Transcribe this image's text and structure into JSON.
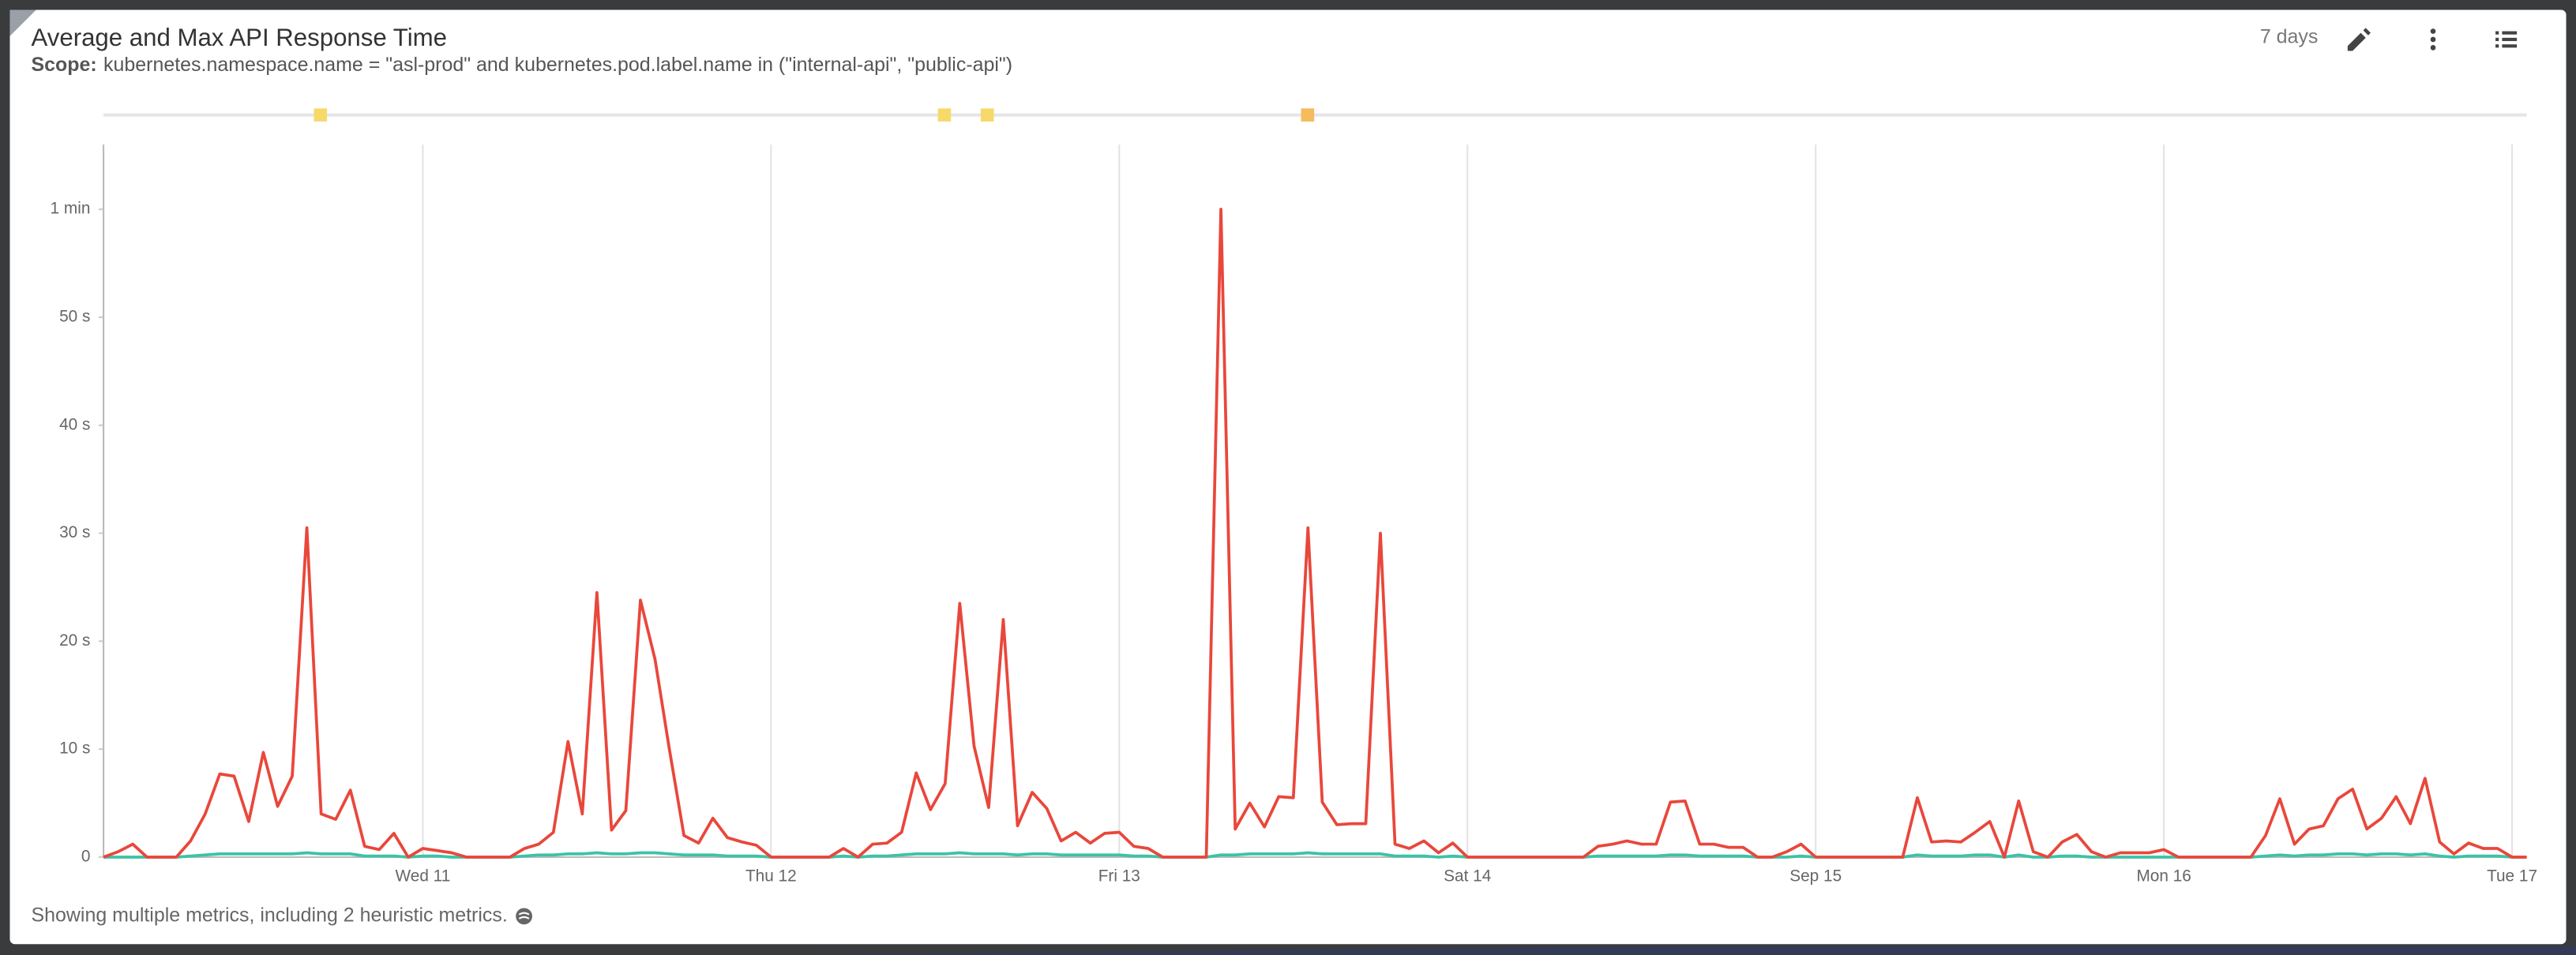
{
  "header": {
    "title": "Average and Max API Response Time",
    "scope_label": "Scope:",
    "scope": "kubernetes.namespace.name = \"asl-prod\" and kubernetes.pod.label.name in (\"internal-api\", \"public-api\")",
    "range": "7 days"
  },
  "footer": "Showing multiple metrics, including 2 heuristic metrics.",
  "chart_data": {
    "type": "line",
    "x": [
      10.083,
      10.125,
      10.167,
      10.208,
      10.25,
      10.292,
      10.333,
      10.375,
      10.417,
      10.458,
      10.5,
      10.542,
      10.583,
      10.625,
      10.667,
      10.708,
      10.75,
      10.792,
      10.833,
      10.875,
      10.917,
      10.958,
      11,
      11.042,
      11.083,
      11.125,
      11.167,
      11.208,
      11.25,
      11.292,
      11.333,
      11.375,
      11.417,
      11.458,
      11.5,
      11.542,
      11.583,
      11.625,
      11.667,
      11.708,
      11.75,
      11.792,
      11.833,
      11.875,
      11.917,
      11.958,
      12,
      12.042,
      12.083,
      12.125,
      12.167,
      12.208,
      12.25,
      12.292,
      12.333,
      12.375,
      12.417,
      12.458,
      12.5,
      12.542,
      12.583,
      12.625,
      12.667,
      12.708,
      12.75,
      12.792,
      12.833,
      12.875,
      12.917,
      12.958,
      13,
      13.042,
      13.083,
      13.125,
      13.167,
      13.208,
      13.25,
      13.292,
      13.333,
      13.375,
      13.417,
      13.458,
      13.5,
      13.542,
      13.583,
      13.625,
      13.667,
      13.708,
      13.75,
      13.792,
      13.833,
      13.875,
      13.917,
      13.958,
      14,
      14.042,
      14.083,
      14.125,
      14.167,
      14.208,
      14.25,
      14.292,
      14.333,
      14.375,
      14.417,
      14.458,
      14.5,
      14.542,
      14.583,
      14.625,
      14.667,
      14.708,
      14.75,
      14.792,
      14.833,
      14.875,
      14.917,
      14.958,
      15,
      15.042,
      15.083,
      15.125,
      15.167,
      15.208,
      15.25,
      15.292,
      15.333,
      15.375,
      15.417,
      15.458,
      15.5,
      15.542,
      15.583,
      15.625,
      15.667,
      15.708,
      15.75,
      15.792,
      15.833,
      15.875,
      15.917,
      15.958,
      16,
      16.042,
      16.083,
      16.125,
      16.167,
      16.208,
      16.25,
      16.292,
      16.333,
      16.375,
      16.417,
      16.458,
      16.5,
      16.542,
      16.583,
      16.625,
      16.667,
      16.708,
      16.75,
      16.792,
      16.833,
      16.875,
      16.917,
      16.958,
      17,
      17.042
    ],
    "series": [
      {
        "color": "#e9473b",
        "values": [
          0,
          0.5,
          1.2,
          0,
          0,
          0,
          1.5,
          4,
          7.7,
          7.5,
          3.3,
          9.7,
          4.7,
          7.5,
          30.5,
          4,
          3.5,
          6.2,
          1,
          0.7,
          2.2,
          0,
          0.8,
          0.6,
          0.4,
          0,
          0,
          0,
          0,
          0.8,
          1.2,
          2.3,
          10.7,
          4,
          24.5,
          2.5,
          4.3,
          23.8,
          18.3,
          10,
          2,
          1.3,
          3.6,
          1.8,
          1.4,
          1.1,
          0,
          0,
          0,
          0,
          0,
          0.8,
          0,
          1.2,
          1.3,
          2.3,
          7.8,
          4.4,
          6.8,
          23.5,
          10.3,
          4.6,
          22,
          2.9,
          6,
          4.5,
          1.5,
          2.3,
          1.3,
          2.2,
          2.3,
          1,
          0.8,
          0,
          0,
          0,
          0,
          60,
          2.6,
          5,
          2.8,
          5.6,
          5.5,
          30.5,
          5.1,
          3,
          3.1,
          3.1,
          30,
          1.2,
          0.8,
          1.5,
          0.4,
          1.3,
          0,
          0,
          0,
          0,
          0,
          0,
          0,
          0,
          0,
          1,
          1.2,
          1.5,
          1.2,
          1.2,
          5.1,
          5.2,
          1.2,
          1.2,
          0.9,
          0.9,
          0,
          0,
          0.5,
          1.2,
          0,
          0,
          0,
          0,
          0,
          0,
          0,
          5.5,
          1.4,
          1.5,
          1.4,
          2.3,
          3.3,
          0,
          5.2,
          0.5,
          0,
          1.4,
          2.1,
          0.5,
          0,
          0.4,
          0.4,
          0.4,
          0.7,
          0,
          0,
          0,
          0,
          0,
          0,
          2,
          5.4,
          1.2,
          2.6,
          2.9,
          5.4,
          6.3,
          2.6,
          3.6,
          5.6,
          3.1,
          7.3,
          1.4,
          0.3,
          1.3,
          0.8,
          0.8,
          0,
          0
        ]
      },
      {
        "color": "#3cc3a6",
        "values": [
          0,
          0,
          0,
          0,
          0,
          0,
          0.1,
          0.2,
          0.3,
          0.3,
          0.3,
          0.3,
          0.3,
          0.3,
          0.4,
          0.3,
          0.3,
          0.3,
          0.1,
          0.1,
          0.1,
          0,
          0.1,
          0.1,
          0,
          0,
          0,
          0,
          0,
          0.1,
          0.2,
          0.2,
          0.3,
          0.3,
          0.4,
          0.3,
          0.3,
          0.4,
          0.4,
          0.3,
          0.2,
          0.2,
          0.2,
          0.1,
          0.1,
          0.1,
          0,
          0,
          0,
          0,
          0,
          0.1,
          0,
          0.1,
          0.1,
          0.2,
          0.3,
          0.3,
          0.3,
          0.4,
          0.3,
          0.3,
          0.3,
          0.2,
          0.3,
          0.3,
          0.2,
          0.2,
          0.2,
          0.2,
          0.2,
          0.1,
          0.1,
          0,
          0,
          0,
          0,
          0.2,
          0.2,
          0.3,
          0.3,
          0.3,
          0.3,
          0.4,
          0.3,
          0.3,
          0.3,
          0.3,
          0.3,
          0.1,
          0.1,
          0.1,
          0,
          0.1,
          0,
          0,
          0,
          0,
          0,
          0,
          0,
          0,
          0,
          0.1,
          0.1,
          0.1,
          0.1,
          0.1,
          0.2,
          0.2,
          0.1,
          0.1,
          0.1,
          0.1,
          0,
          0,
          0,
          0.1,
          0,
          0,
          0,
          0,
          0,
          0,
          0,
          0.2,
          0.1,
          0.1,
          0.1,
          0.2,
          0.2,
          0,
          0.2,
          0,
          0,
          0.1,
          0.1,
          0,
          0,
          0,
          0,
          0,
          0,
          0,
          0,
          0,
          0,
          0,
          0,
          0.1,
          0.2,
          0.1,
          0.2,
          0.2,
          0.3,
          0.3,
          0.2,
          0.3,
          0.3,
          0.2,
          0.3,
          0.1,
          0,
          0.1,
          0.1,
          0.1,
          0,
          0
        ]
      }
    ],
    "events": [
      10.706,
      12.498,
      12.621,
      13.541
    ],
    "event_colors": [
      "#f7d96b",
      "#f7d96b",
      "#f7d96b",
      "#f6bb5c"
    ],
    "xlim": [
      10.083,
      17.042
    ],
    "xticks": [
      {
        "value": 11,
        "label": "Wed 11"
      },
      {
        "value": 12,
        "label": "Thu 12"
      },
      {
        "value": 13,
        "label": "Fri 13"
      },
      {
        "value": 14,
        "label": "Sat 14"
      },
      {
        "value": 15,
        "label": "Sep 15"
      },
      {
        "value": 16,
        "label": "Mon 16"
      },
      {
        "value": 17,
        "label": "Tue 17"
      }
    ],
    "ylim": [
      0,
      66
    ],
    "yticks": [
      0,
      {
        "value": 10,
        "label": "10 s"
      },
      {
        "value": 20,
        "label": "20 s"
      },
      {
        "value": 30,
        "label": "30 s"
      },
      {
        "value": 40,
        "label": "40 s"
      },
      {
        "value": 50,
        "label": "50 s"
      },
      {
        "value": 60,
        "label": "1 min"
      }
    ],
    "grid": "x"
  }
}
